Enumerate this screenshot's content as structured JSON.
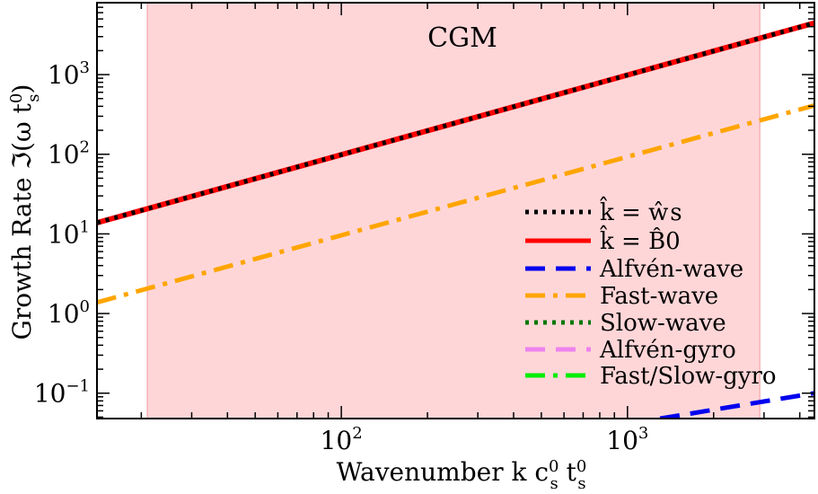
{
  "chart_data": {
    "type": "line",
    "annotation": "CGM",
    "xlabel": "Wavenumber  k c",
    "ylabel": "Growth Rate  ℑ(ω t",
    "xscale": "log",
    "yscale": "log",
    "xlim": [
      14,
      4500
    ],
    "ylim": [
      0.048,
      8000
    ],
    "x_ticks": [
      {
        "value": 100,
        "base": "10",
        "exp": "2"
      },
      {
        "value": 1000,
        "base": "10",
        "exp": "3"
      }
    ],
    "y_ticks": [
      {
        "value": 0.1,
        "base": "10",
        "exp": "−1"
      },
      {
        "value": 1,
        "base": "10",
        "exp": "0"
      },
      {
        "value": 10,
        "base": "10",
        "exp": "1"
      },
      {
        "value": 100,
        "base": "10",
        "exp": "2"
      },
      {
        "value": 1000,
        "base": "10",
        "exp": "3"
      }
    ],
    "shaded_region": {
      "x": [
        21,
        2900
      ],
      "color": "#ffd6d8"
    },
    "legend_position": "lower-right",
    "series": [
      {
        "name": "k̂ = ŵs",
        "color": "#000000",
        "style": "dotted",
        "x": [
          14,
          4500
        ],
        "y": [
          13.8,
          4450
        ]
      },
      {
        "name": "k̂ = B̂0",
        "color": "#ff0000",
        "style": "solid",
        "x": [
          14,
          4500
        ],
        "y": [
          13.8,
          4450
        ]
      },
      {
        "name": "Alfvén-wave",
        "color": "#0000ee",
        "style": "dashed",
        "x": [
          1300,
          4500
        ],
        "y": [
          0.048,
          0.1
        ]
      },
      {
        "name": "Fast-wave",
        "color": "#ffa500",
        "style": "dashdot",
        "x": [
          14,
          4500
        ],
        "y": [
          1.38,
          410
        ]
      },
      {
        "name": "Slow-wave",
        "color": "#007700",
        "style": "dotted",
        "x": [],
        "y": []
      },
      {
        "name": "Alfvén-gyro",
        "color": "#ee82ee",
        "style": "dashed",
        "x": [],
        "y": []
      },
      {
        "name": "Fast/Slow-gyro",
        "color": "#00ee00",
        "style": "dashdot",
        "x": [],
        "y": []
      }
    ]
  }
}
